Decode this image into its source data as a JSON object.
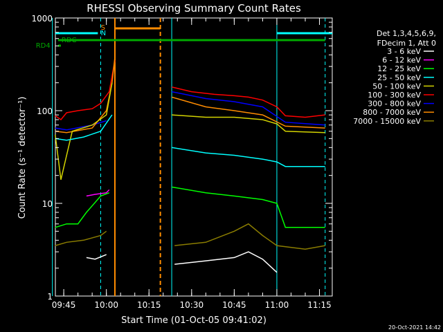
{
  "chart_data": {
    "type": "line",
    "title": "RHESSI Observing Summary Count Rates",
    "xlabel": "Start Time (01-Oct-05 09:41:02)",
    "ylabel": "Count Rate (s⁻¹ detector⁻¹)",
    "yscale": "log",
    "ylim": [
      1,
      1000
    ],
    "xlim_minutes": [
      "09:41",
      "11:19"
    ],
    "x_ticks": [
      "09:45",
      "10:00",
      "10:15",
      "10:30",
      "10:45",
      "11:00",
      "11:15"
    ],
    "y_ticks": [
      "1",
      "10",
      "100",
      "1000"
    ],
    "legend": {
      "placement": "right",
      "header": [
        "Det 1,3,4,5,6,9,",
        "FDecim 1, Att 0"
      ],
      "entries": [
        {
          "label": "3 - 6 keV",
          "color": "#ffffff"
        },
        {
          "label": "6 - 12 keV",
          "color": "#ff00ff"
        },
        {
          "label": "12 - 25 keV",
          "color": "#00ff00"
        },
        {
          "label": "25 - 50 keV",
          "color": "#00ffff"
        },
        {
          "label": "50 - 100 keV",
          "color": "#d4d400"
        },
        {
          "label": "100 - 300 keV",
          "color": "#ff0000"
        },
        {
          "label": "300 - 800 keV",
          "color": "#0000ff"
        },
        {
          "label": "800 - 7000 keV",
          "color": "#ff8c00"
        },
        {
          "label": "7000 - 15000 keV",
          "color": "#8b7d00"
        }
      ]
    },
    "flags": [
      {
        "label": "S",
        "color": "#ff8c00"
      },
      {
        "label": "N",
        "color": "#00ffff"
      },
      {
        "label": "RDC",
        "color": "#00aa00"
      },
      {
        "label": "RD4",
        "color": "#00aa00"
      }
    ],
    "series": [
      {
        "name": "100 - 300 keV",
        "color": "#ff0000",
        "x": [
          "09:42",
          "09:44",
          "09:46",
          "09:50",
          "09:55",
          "09:58",
          "10:01",
          "10:03",
          "10:23",
          "10:30",
          "10:38",
          "10:45",
          "10:50",
          "10:55",
          "11:00",
          "11:03",
          "11:10",
          "11:17"
        ],
        "y": [
          88,
          80,
          95,
          100,
          105,
          120,
          160,
          350,
          180,
          160,
          150,
          145,
          140,
          130,
          110,
          88,
          85,
          90
        ]
      },
      {
        "name": "300 - 800 keV",
        "color": "#0000ff",
        "x": [
          "09:42",
          "09:46",
          "09:55",
          "10:00",
          "10:23",
          "10:35",
          "10:45",
          "10:55",
          "11:03",
          "11:17"
        ],
        "y": [
          65,
          62,
          70,
          78,
          160,
          135,
          125,
          110,
          75,
          70
        ]
      },
      {
        "name": "800 - 7000 keV",
        "color": "#ff8c00",
        "x": [
          "09:42",
          "09:46",
          "09:55",
          "10:00",
          "10:02",
          "10:03",
          "10:23",
          "10:35",
          "10:45",
          "10:55",
          "11:03",
          "11:17"
        ],
        "y": [
          60,
          58,
          65,
          100,
          200,
          380,
          140,
          110,
          100,
          90,
          68,
          65
        ]
      },
      {
        "name": "50 - 100 keV",
        "color": "#d4d400",
        "x": [
          "09:42",
          "09:44",
          "09:48",
          "09:55",
          "10:00",
          "10:02",
          "10:23",
          "10:35",
          "10:45",
          "10:55",
          "11:00",
          "11:03",
          "11:17"
        ],
        "y": [
          55,
          18,
          60,
          70,
          90,
          200,
          90,
          85,
          85,
          80,
          72,
          60,
          58
        ]
      },
      {
        "name": "25 - 50 keV",
        "color": "#00ffff",
        "x": [
          "09:42",
          "09:46",
          "09:52",
          "09:58",
          "10:02",
          "10:23",
          "10:35",
          "10:45",
          "10:55",
          "11:00",
          "11:03",
          "11:17"
        ],
        "y": [
          50,
          48,
          52,
          60,
          90,
          40,
          35,
          33,
          30,
          28,
          25,
          25
        ]
      },
      {
        "name": "12 - 25 keV",
        "color": "#00ff00",
        "x": [
          "09:42",
          "09:46",
          "09:50",
          "09:53",
          "09:58",
          "10:01",
          "10:23",
          "10:35",
          "10:45",
          "10:55",
          "11:00",
          "11:03",
          "11:17"
        ],
        "y": [
          5.5,
          6,
          6,
          8,
          12,
          13,
          15,
          13,
          12,
          11,
          10,
          5.5,
          5.5
        ]
      },
      {
        "name": "6 - 12 keV",
        "color": "#ff00ff",
        "x": [
          "09:53",
          "09:56",
          "10:00",
          "10:01"
        ],
        "y": [
          12,
          12.5,
          13,
          14
        ]
      },
      {
        "name": "3 - 6 keV",
        "color": "#ffffff",
        "x": [
          "09:53",
          "09:56",
          "10:00",
          "10:24",
          "10:35",
          "10:45",
          "10:50",
          "10:55",
          "11:00"
        ],
        "y": [
          2.6,
          2.5,
          2.8,
          2.2,
          2.4,
          2.6,
          3,
          2.5,
          1.8
        ]
      },
      {
        "name": "7000 - 15000 keV",
        "color": "#8b7d00",
        "x": [
          "09:42",
          "09:46",
          "09:52",
          "09:58",
          "10:00",
          "10:24",
          "10:35",
          "10:45",
          "10:50",
          "10:55",
          "11:00",
          "11:10",
          "11:17"
        ],
        "y": [
          3.5,
          3.8,
          4,
          4.5,
          5,
          3.5,
          3.8,
          5,
          6,
          4.5,
          3.5,
          3.2,
          3.5
        ]
      }
    ]
  },
  "footer_date": "20-Oct-2021 14:42"
}
